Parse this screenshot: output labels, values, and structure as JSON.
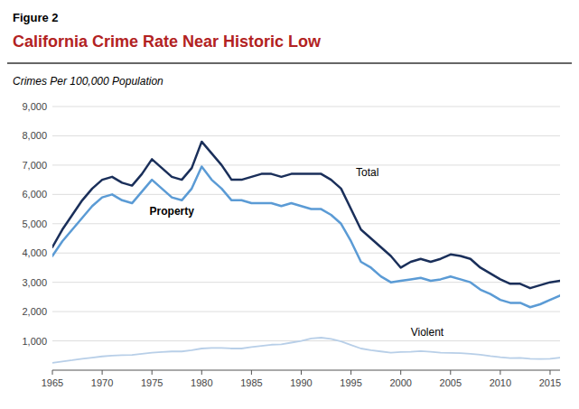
{
  "chart_data": {
    "type": "line",
    "figure_label": "Figure 2",
    "title": "California Crime Rate Near Historic Low",
    "subtitle": "Crimes Per 100,000 Population",
    "x": [
      1965,
      1966,
      1967,
      1968,
      1969,
      1970,
      1971,
      1972,
      1973,
      1974,
      1975,
      1976,
      1977,
      1978,
      1979,
      1980,
      1981,
      1982,
      1983,
      1984,
      1985,
      1986,
      1987,
      1988,
      1989,
      1990,
      1991,
      1992,
      1993,
      1994,
      1995,
      1996,
      1997,
      1998,
      1999,
      2000,
      2001,
      2002,
      2003,
      2004,
      2005,
      2006,
      2007,
      2008,
      2009,
      2010,
      2011,
      2012,
      2013,
      2014,
      2015,
      2016
    ],
    "series": [
      {
        "name": "Total",
        "color": "#1a2f5a",
        "values": [
          4200,
          4800,
          5300,
          5800,
          6200,
          6500,
          6600,
          6400,
          6300,
          6700,
          7200,
          6900,
          6600,
          6500,
          6900,
          7800,
          7400,
          7000,
          6500,
          6500,
          6600,
          6700,
          6700,
          6600,
          6700,
          6700,
          6700,
          6700,
          6500,
          6200,
          5500,
          4800,
          4500,
          4200,
          3900,
          3500,
          3700,
          3800,
          3700,
          3800,
          3950,
          3900,
          3800,
          3500,
          3300,
          3100,
          2950,
          2950,
          2800,
          2900,
          3000,
          3050
        ]
      },
      {
        "name": "Property",
        "color": "#5b9bd5",
        "values": [
          3900,
          4400,
          4800,
          5200,
          5600,
          5900,
          6000,
          5800,
          5700,
          6100,
          6500,
          6200,
          5900,
          5800,
          6200,
          6950,
          6500,
          6200,
          5800,
          5800,
          5700,
          5700,
          5700,
          5600,
          5700,
          5600,
          5500,
          5500,
          5300,
          5000,
          4400,
          3700,
          3500,
          3200,
          3000,
          3050,
          3100,
          3150,
          3050,
          3100,
          3200,
          3100,
          3000,
          2750,
          2600,
          2400,
          2300,
          2300,
          2150,
          2250,
          2400,
          2550
        ]
      },
      {
        "name": "Violent",
        "color": "#b8cfe8",
        "values": [
          250,
          300,
          340,
          390,
          430,
          470,
          500,
          510,
          520,
          560,
          600,
          620,
          640,
          640,
          680,
          740,
          760,
          760,
          740,
          740,
          790,
          830,
          870,
          880,
          940,
          1000,
          1080,
          1110,
          1070,
          980,
          860,
          740,
          680,
          640,
          600,
          620,
          630,
          650,
          630,
          600,
          590,
          580,
          560,
          530,
          480,
          440,
          410,
          420,
          390,
          380,
          390,
          430
        ]
      }
    ],
    "annotations": [
      {
        "text": "Total",
        "x": 1995.5,
        "y": 6500
      },
      {
        "text": "Property",
        "x": 1977,
        "y": 5680
      },
      {
        "text": "Violent",
        "x": 2001,
        "y": 1050
      }
    ],
    "xlim": [
      1965,
      2016
    ],
    "ylim": [
      0,
      9000
    ],
    "xticks": [
      1965,
      1970,
      1975,
      1980,
      1985,
      1990,
      1995,
      2000,
      2005,
      2010,
      2015
    ],
    "yticks": [
      {
        "value": 1000,
        "label": "1,000"
      },
      {
        "value": 2000,
        "label": "2,000"
      },
      {
        "value": 3000,
        "label": "3,000"
      },
      {
        "value": 4000,
        "label": "4,000"
      },
      {
        "value": 5000,
        "label": "5,000"
      },
      {
        "value": 6000,
        "label": "6,000"
      },
      {
        "value": 7000,
        "label": "7,000"
      },
      {
        "value": 8000,
        "label": "8,000"
      },
      {
        "value": 9000,
        "label": "9,000"
      }
    ],
    "grid": true
  }
}
